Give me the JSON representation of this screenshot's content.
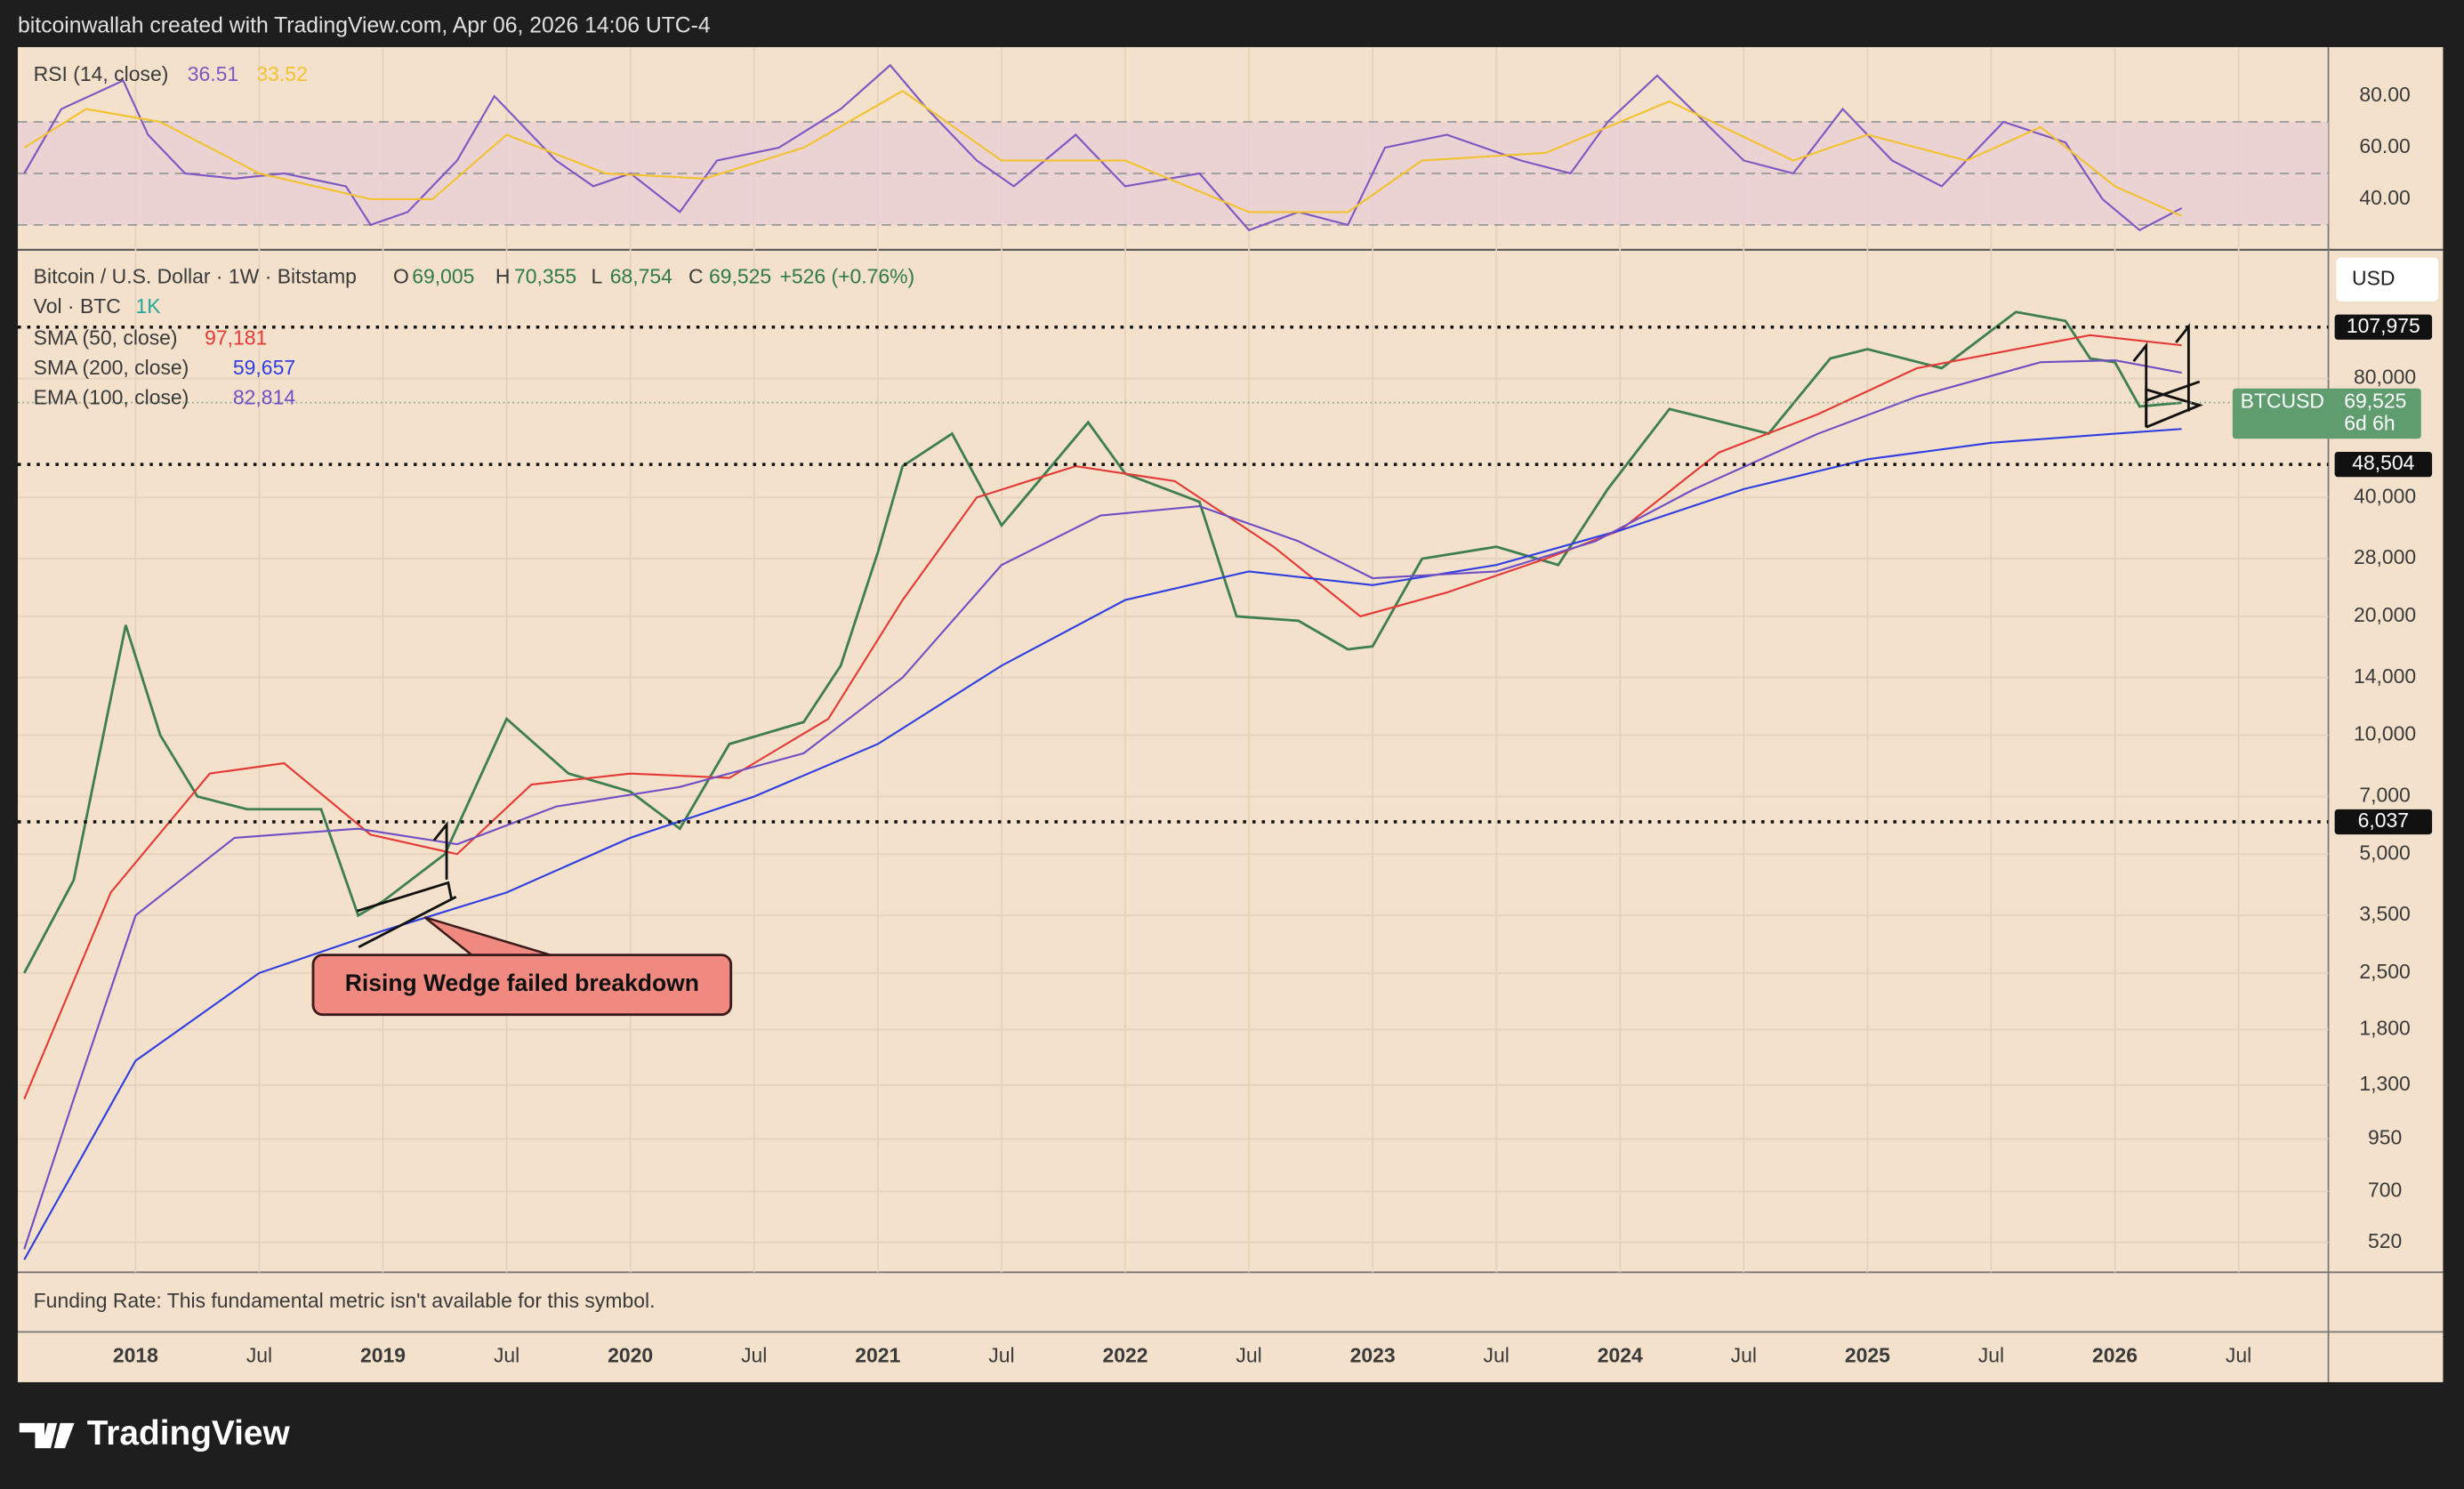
{
  "header": {
    "credit": "bitcoinwallah created with TradingView.com, Apr 06, 2026 14:06 UTC-4"
  },
  "chart_data": [
    {
      "type": "line",
      "title": "RSI (14, close)",
      "ylim": [
        21,
        99
      ],
      "yticks": [
        {
          "value": 80,
          "label": "80.00"
        },
        {
          "value": 60,
          "label": "60.00"
        },
        {
          "value": 40,
          "label": "40.00"
        }
      ],
      "bands": [
        70,
        50,
        30
      ],
      "series": [
        {
          "color": "#7e57c2",
          "value_label": "36.51",
          "x": [
            2017.55,
            2017.7,
            2017.95,
            2018.05,
            2018.2,
            2018.4,
            2018.6,
            2018.85,
            2018.95,
            2019.1,
            2019.3,
            2019.45,
            2019.7,
            2019.85,
            2020.0,
            2020.2,
            2020.35,
            2020.6,
            2020.85,
            2021.05,
            2021.2,
            2021.4,
            2021.55,
            2021.8,
            2022.0,
            2022.3,
            2022.5,
            2022.7,
            2022.9,
            2023.05,
            2023.3,
            2023.6,
            2023.8,
            2023.95,
            2024.15,
            2024.5,
            2024.7,
            2024.9,
            2025.1,
            2025.3,
            2025.55,
            2025.8,
            2025.95,
            2026.1,
            2026.2,
            2026.27
          ],
          "values": [
            50,
            75,
            86,
            65,
            50,
            48,
            50,
            45,
            30,
            35,
            55,
            80,
            55,
            45,
            50,
            35,
            55,
            60,
            75,
            92,
            75,
            55,
            45,
            65,
            45,
            50,
            28,
            35,
            30,
            60,
            65,
            55,
            50,
            70,
            88,
            55,
            50,
            75,
            55,
            45,
            70,
            62,
            40,
            28,
            33,
            36.51
          ]
        },
        {
          "color": "#f2c230",
          "value_label": "33.52",
          "x": [
            2017.55,
            2017.8,
            2018.1,
            2018.5,
            2018.95,
            2019.2,
            2019.5,
            2019.9,
            2020.3,
            2020.7,
            2021.1,
            2021.5,
            2022.0,
            2022.5,
            2022.9,
            2023.2,
            2023.7,
            2024.2,
            2024.7,
            2025.0,
            2025.4,
            2025.7,
            2026.0,
            2026.27
          ],
          "values": [
            60,
            75,
            70,
            50,
            40,
            40,
            65,
            50,
            48,
            60,
            82,
            55,
            55,
            35,
            35,
            55,
            58,
            78,
            55,
            65,
            55,
            68,
            45,
            33.52
          ]
        }
      ]
    },
    {
      "type": "line",
      "title": "Bitcoin / U.S. Dollar · 1W · Bitstamp",
      "ohlc": [
        {
          "key": "O",
          "value": "69,005"
        },
        {
          "key": "H",
          "value": "70,355"
        },
        {
          "key": "L",
          "value": "68,754"
        },
        {
          "key": "C",
          "value": "69,525"
        }
      ],
      "change": "+526 (+0.76%)",
      "volume": {
        "label": "Vol · BTC",
        "value": "1K"
      },
      "currency": "USD",
      "log_scale": true,
      "grid": true,
      "xlim": [
        2017.524,
        2026.863
      ],
      "xticks": [
        2018,
        {
          "value": 2018.5,
          "label": "Jul"
        },
        2019,
        {
          "value": 2019.5,
          "label": "Jul"
        },
        2020,
        {
          "value": 2020.5,
          "label": "Jul"
        },
        2021,
        {
          "value": 2021.5,
          "label": "Jul"
        },
        2022,
        {
          "value": 2022.5,
          "label": "Jul"
        },
        2023,
        {
          "value": 2023.5,
          "label": "Jul"
        },
        2024,
        {
          "value": 2024.5,
          "label": "Jul"
        },
        2025,
        {
          "value": 2025.5,
          "label": "Jul"
        },
        2026,
        {
          "value": 2026.5,
          "label": "Jul"
        }
      ],
      "ylim": [
        437,
        168000
      ],
      "yticks": [
        {
          "value": 80000,
          "label": "80,000"
        },
        {
          "value": 40000,
          "label": "40,000"
        },
        {
          "value": 28000,
          "label": "28,000"
        },
        {
          "value": 20000,
          "label": "20,000"
        },
        {
          "value": 14000,
          "label": "14,000"
        },
        {
          "value": 10000,
          "label": "10,000"
        },
        {
          "value": 7000,
          "label": "7,000"
        },
        {
          "value": 5000,
          "label": "5,000"
        },
        {
          "value": 3500,
          "label": "3,500"
        },
        {
          "value": 2500,
          "label": "2,500"
        },
        {
          "value": 1800,
          "label": "1,800"
        },
        {
          "value": 1300,
          "label": "1,300"
        },
        950,
        700,
        520
      ],
      "levels": [
        {
          "value": 107975,
          "label": "107,975"
        },
        {
          "value": 48504,
          "label": "48,504"
        },
        {
          "value": 6037,
          "label": "6,037"
        }
      ],
      "last": {
        "value": 69525,
        "label": "69,525",
        "symbol": "BTCUSD",
        "countdown": "6d 6h"
      },
      "series": [
        {
          "color": "#3f7f4f",
          "x": [
            2017.55,
            2017.75,
            2017.96,
            2018.1,
            2018.25,
            2018.45,
            2018.75,
            2018.9,
            2019.0,
            2019.25,
            2019.5,
            2019.75,
            2020.0,
            2020.2,
            2020.4,
            2020.7,
            2020.85,
            2021.0,
            2021.1,
            2021.3,
            2021.5,
            2021.85,
            2022.0,
            2022.3,
            2022.45,
            2022.7,
            2022.9,
            2023.0,
            2023.2,
            2023.5,
            2023.75,
            2023.95,
            2024.2,
            2024.6,
            2024.85,
            2025.0,
            2025.3,
            2025.6,
            2025.8,
            2025.9,
            2026.0,
            2026.1,
            2026.27
          ],
          "values": [
            2500,
            4300,
            19000,
            10000,
            7000,
            6500,
            6500,
            3500,
            3800,
            5000,
            11000,
            8000,
            7200,
            5800,
            9500,
            10800,
            15000,
            29000,
            48000,
            58000,
            34000,
            62000,
            46000,
            39000,
            20000,
            19500,
            16500,
            16800,
            28000,
            30000,
            27000,
            42000,
            67000,
            58000,
            90000,
            95000,
            85000,
            118000,
            112000,
            90000,
            88000,
            68000,
            69525
          ]
        },
        {
          "name": "SMA (50, close)",
          "value_label": "97,181",
          "color": "#e53935",
          "x": [
            2017.55,
            2017.9,
            2018.3,
            2018.6,
            2018.95,
            2019.3,
            2019.6,
            2020.0,
            2020.4,
            2020.8,
            2021.1,
            2021.4,
            2021.8,
            2022.2,
            2022.6,
            2022.95,
            2023.3,
            2023.7,
            2024.0,
            2024.4,
            2024.8,
            2025.2,
            2025.6,
            2025.9,
            2026.27
          ],
          "values": [
            1200,
            4000,
            8000,
            8500,
            5600,
            5000,
            7500,
            8000,
            7800,
            11000,
            22000,
            40000,
            48000,
            44000,
            30000,
            20000,
            23000,
            28000,
            33000,
            52000,
            65000,
            85000,
            95000,
            103000,
            97181
          ]
        },
        {
          "name": "SMA (200, close)",
          "value_label": "59,657",
          "color": "#2f3ee0",
          "x": [
            2017.55,
            2018.0,
            2018.5,
            2019.0,
            2019.5,
            2020.0,
            2020.5,
            2021.0,
            2021.5,
            2022.0,
            2022.5,
            2023.0,
            2023.5,
            2024.0,
            2024.5,
            2025.0,
            2025.5,
            2026.0,
            2026.27
          ],
          "values": [
            470,
            1500,
            2500,
            3200,
            4000,
            5500,
            7000,
            9500,
            15000,
            22000,
            26000,
            24000,
            27000,
            33000,
            42000,
            50000,
            55000,
            58000,
            59657
          ]
        },
        {
          "name": "EMA (100, close)",
          "value_label": "82,814",
          "color": "#6f4fc4",
          "x": [
            2017.55,
            2017.75,
            2018.0,
            2018.4,
            2018.9,
            2019.3,
            2019.7,
            2020.2,
            2020.7,
            2021.1,
            2021.5,
            2021.9,
            2022.3,
            2022.7,
            2023.0,
            2023.5,
            2023.9,
            2024.3,
            2024.8,
            2025.2,
            2025.7,
            2026.0,
            2026.27
          ],
          "values": [
            500,
            1200,
            3500,
            5500,
            5800,
            5300,
            6600,
            7400,
            9000,
            14000,
            27000,
            36000,
            38000,
            31000,
            25000,
            26000,
            31000,
            42000,
            58000,
            72000,
            88000,
            89000,
            82814
          ]
        }
      ],
      "annotations": [
        {
          "text": "Rising Wedge failed breakdown"
        }
      ]
    }
  ],
  "funding_note": "Funding Rate: This fundamental metric isn't available for this symbol.",
  "footer": {
    "brand": "TradingView"
  }
}
